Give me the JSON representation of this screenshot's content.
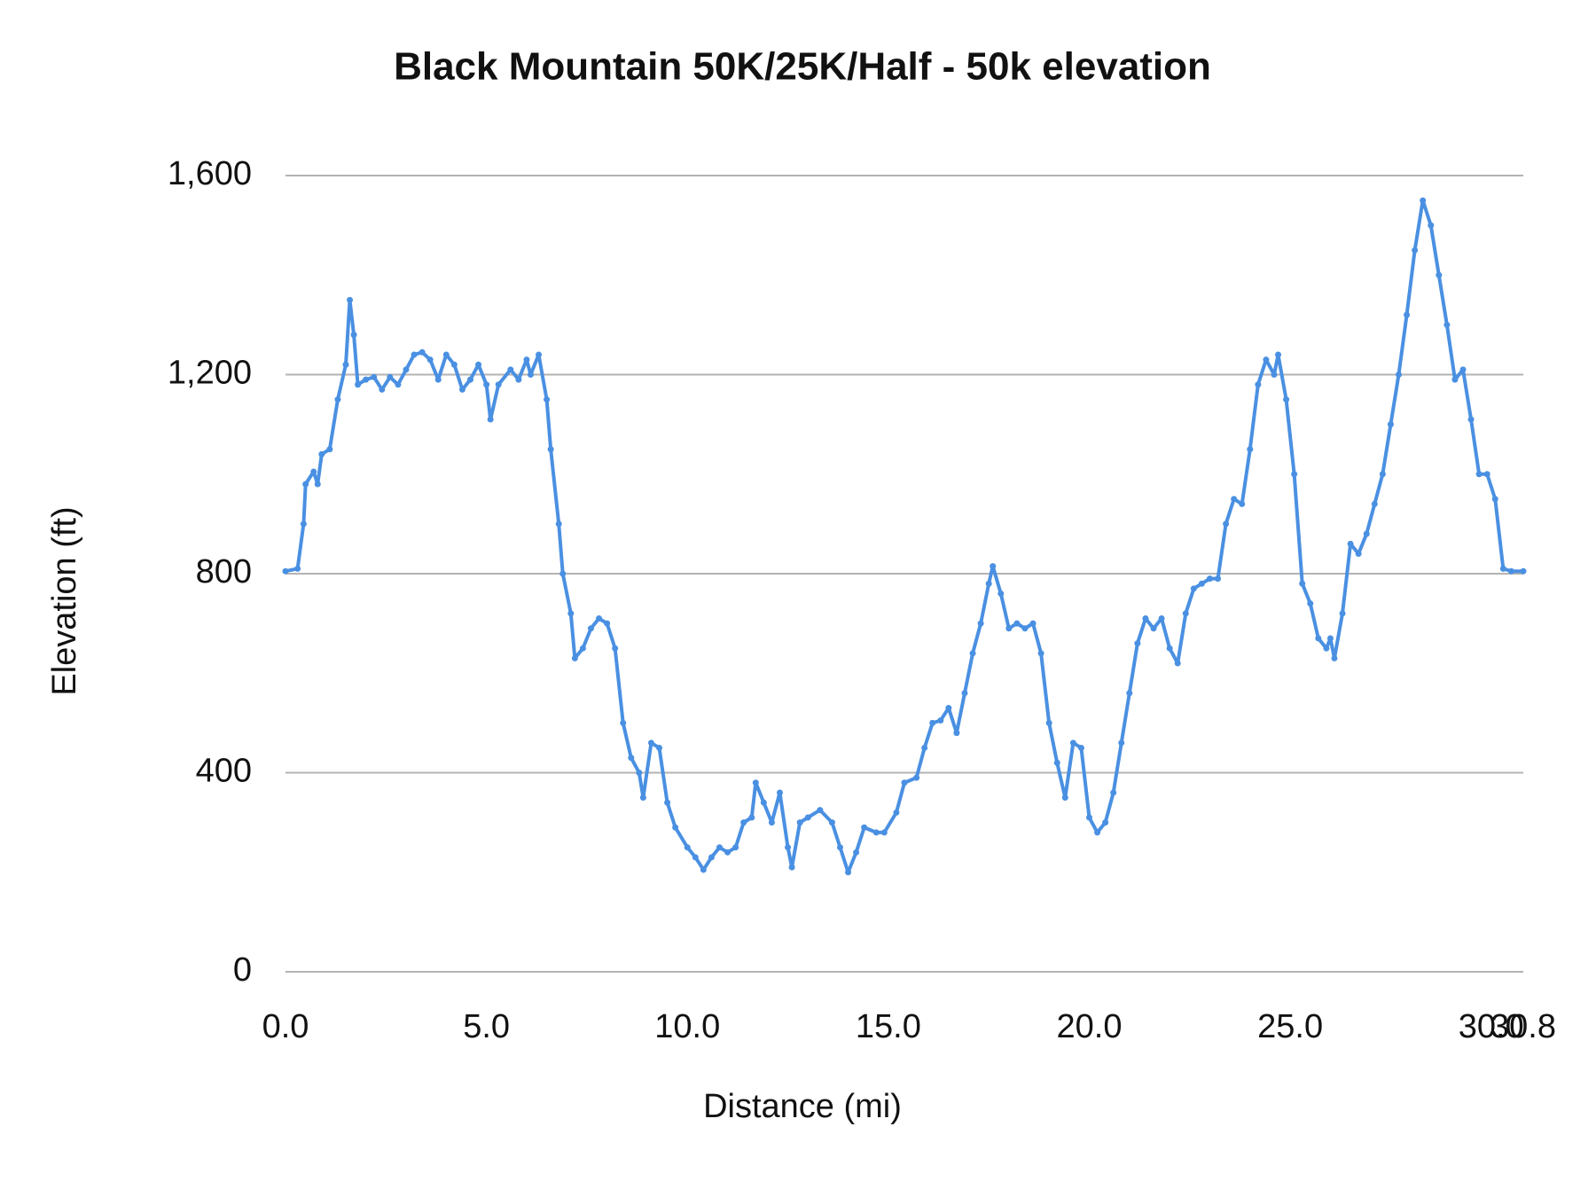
{
  "chart_data": {
    "type": "line",
    "title": "Black Mountain 50K/25K/Half - 50k elevation",
    "x_label": "Distance (mi)",
    "y_label": "Elevation (ft)",
    "color": "#4a90e2",
    "grid": true,
    "xlim": [
      0,
      30.8
    ],
    "ylim": [
      0,
      1600
    ],
    "xticks": [
      {
        "value": 0,
        "label": "0.0"
      },
      {
        "value": 5,
        "label": "5.0"
      },
      {
        "value": 10,
        "label": "10.0"
      },
      {
        "value": 15,
        "label": "15.0"
      },
      {
        "value": 20,
        "label": "20.0"
      },
      {
        "value": 25,
        "label": "25.0"
      },
      {
        "value": 30,
        "label": "30.0"
      },
      {
        "value": 30.8,
        "label": "30.8"
      }
    ],
    "yticks": [
      0,
      400,
      800,
      {
        "value": 1200,
        "label": "1,200"
      },
      {
        "value": 1600,
        "label": "1,600"
      }
    ],
    "x": [
      0,
      0.3,
      0.45,
      0.5,
      0.7,
      0.8,
      0.9,
      1.1,
      1.3,
      1.5,
      1.6,
      1.7,
      1.8,
      2.0,
      2.2,
      2.4,
      2.6,
      2.8,
      3.0,
      3.2,
      3.4,
      3.6,
      3.8,
      4.0,
      4.2,
      4.4,
      4.6,
      4.8,
      5.0,
      5.1,
      5.3,
      5.6,
      5.8,
      6.0,
      6.1,
      6.3,
      6.5,
      6.6,
      6.8,
      6.9,
      7.1,
      7.2,
      7.4,
      7.6,
      7.8,
      8.0,
      8.2,
      8.4,
      8.6,
      8.8,
      8.9,
      9.1,
      9.3,
      9.5,
      9.7,
      10.0,
      10.2,
      10.4,
      10.6,
      10.8,
      11.0,
      11.2,
      11.4,
      11.6,
      11.7,
      11.9,
      12.1,
      12.3,
      12.5,
      12.6,
      12.8,
      13.0,
      13.3,
      13.6,
      13.8,
      14.0,
      14.2,
      14.4,
      14.7,
      14.9,
      15.2,
      15.4,
      15.7,
      15.9,
      16.1,
      16.3,
      16.5,
      16.7,
      16.9,
      17.1,
      17.3,
      17.5,
      17.6,
      17.8,
      18.0,
      18.2,
      18.4,
      18.6,
      18.8,
      19.0,
      19.2,
      19.4,
      19.6,
      19.8,
      20.0,
      20.2,
      20.4,
      20.6,
      20.8,
      21.0,
      21.2,
      21.4,
      21.6,
      21.8,
      22.0,
      22.2,
      22.4,
      22.6,
      22.8,
      23.0,
      23.2,
      23.4,
      23.6,
      23.8,
      24.0,
      24.2,
      24.4,
      24.6,
      24.7,
      24.9,
      25.1,
      25.3,
      25.5,
      25.7,
      25.9,
      26.0,
      26.1,
      26.3,
      26.5,
      26.7,
      26.9,
      27.1,
      27.3,
      27.5,
      27.7,
      27.9,
      28.1,
      28.3,
      28.5,
      28.7,
      28.9,
      29.1,
      29.3,
      29.5,
      29.7,
      29.9,
      30.1,
      30.3,
      30.5,
      30.8
    ],
    "values": [
      805,
      810,
      900,
      980,
      1005,
      980,
      1040,
      1050,
      1150,
      1220,
      1350,
      1280,
      1180,
      1190,
      1195,
      1170,
      1195,
      1180,
      1210,
      1240,
      1245,
      1230,
      1190,
      1240,
      1220,
      1170,
      1190,
      1220,
      1180,
      1110,
      1180,
      1210,
      1190,
      1230,
      1200,
      1240,
      1150,
      1050,
      900,
      800,
      720,
      630,
      650,
      690,
      710,
      700,
      650,
      500,
      430,
      400,
      350,
      460,
      450,
      340,
      290,
      250,
      230,
      205,
      230,
      250,
      240,
      250,
      300,
      310,
      380,
      340,
      300,
      360,
      250,
      210,
      300,
      310,
      325,
      300,
      250,
      200,
      240,
      290,
      280,
      280,
      320,
      380,
      390,
      450,
      500,
      505,
      530,
      480,
      560,
      640,
      700,
      780,
      815,
      760,
      690,
      700,
      690,
      700,
      640,
      500,
      420,
      350,
      460,
      450,
      310,
      280,
      300,
      360,
      460,
      560,
      660,
      710,
      690,
      710,
      650,
      620,
      720,
      770,
      780,
      790,
      790,
      900,
      950,
      940,
      1050,
      1180,
      1230,
      1200,
      1240,
      1150,
      1000,
      780,
      740,
      670,
      650,
      670,
      630,
      720,
      860,
      840,
      880,
      940,
      1000,
      1100,
      1200,
      1320,
      1450,
      1550,
      1500,
      1400,
      1300,
      1190,
      1210,
      1110,
      1000,
      1000,
      950,
      810,
      805,
      805
    ]
  }
}
